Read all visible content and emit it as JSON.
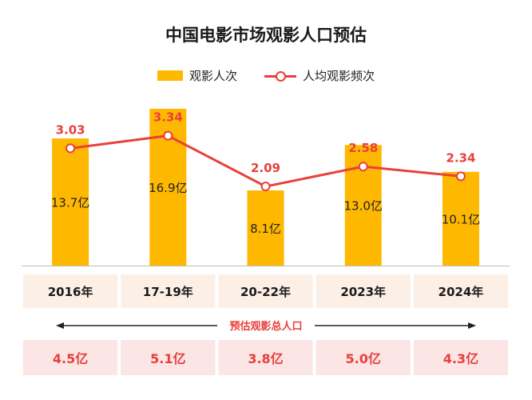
{
  "chart_data": {
    "type": "bar",
    "title": "中国电影市场观影人口预估",
    "categories": [
      "2016年",
      "17-19年",
      "20-22年",
      "2023年",
      "2024年"
    ],
    "series": [
      {
        "name": "观影人次",
        "type": "bar",
        "values": [
          13.7,
          16.9,
          8.1,
          13.0,
          10.1
        ],
        "labels": [
          "13.7亿",
          "16.9亿",
          "8.1亿",
          "13.0亿",
          "10.1亿"
        ]
      },
      {
        "name": "人均观影频次",
        "type": "line",
        "values": [
          3.03,
          3.34,
          2.09,
          2.58,
          2.34
        ],
        "labels": [
          "3.03",
          "3.34",
          "2.09",
          "2.58",
          "2.34"
        ]
      }
    ],
    "estimate_label": "预估观影总人口",
    "estimate_values": [
      "4.5亿",
      "5.1亿",
      "3.8亿",
      "5.0亿",
      "4.3亿"
    ],
    "colors": {
      "bar": "#FFB800",
      "line": "#E8403A",
      "label": "#E8403A",
      "category_bg": "#FCEFE6",
      "estimate_bg": "#FBE5E5",
      "axis": "#BDBDBD"
    }
  }
}
